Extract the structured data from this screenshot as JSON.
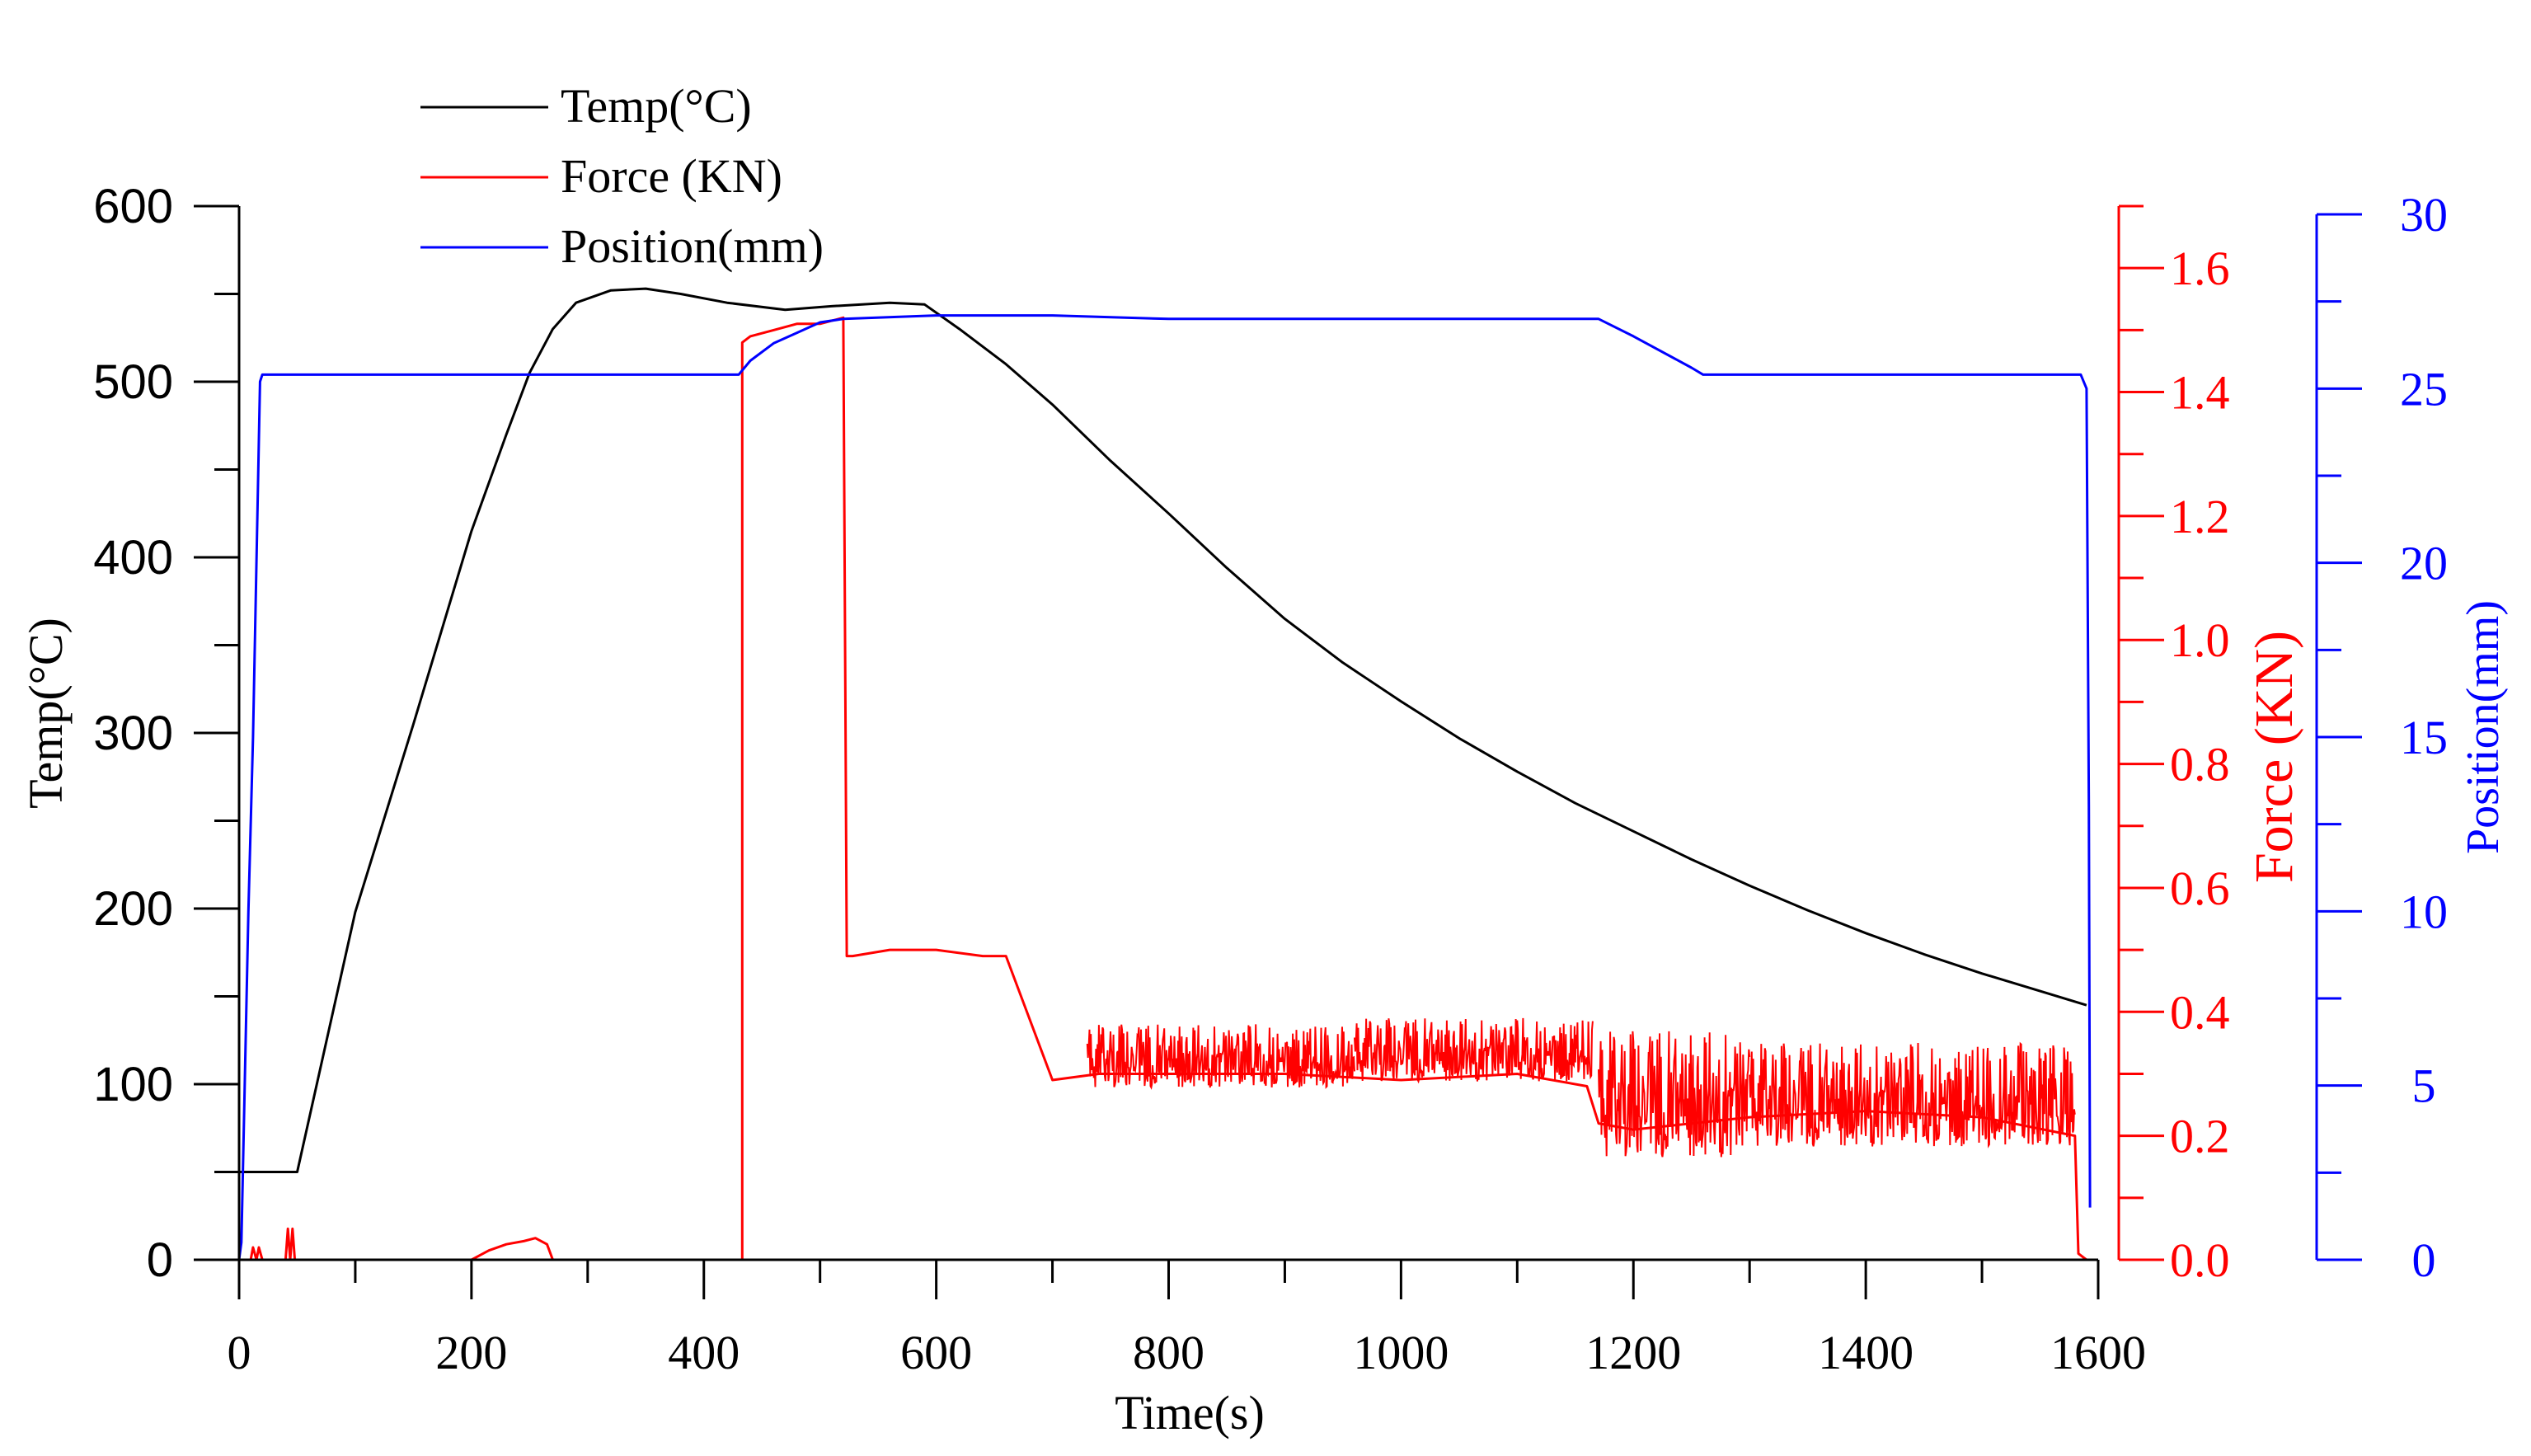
{
  "chart_data": {
    "type": "line",
    "title": "",
    "xlabel": "Time(s)",
    "x_ticks": [
      0,
      200,
      400,
      600,
      800,
      1000,
      1200,
      1400,
      1600
    ],
    "xlim": [
      0,
      1600
    ],
    "axes": {
      "temp": {
        "label": "Temp(°C)",
        "ylim": [
          0,
          600
        ],
        "ticks": [
          0,
          100,
          200,
          300,
          400,
          500,
          600
        ],
        "tick_labels": [
          "0",
          "100",
          "200",
          "300",
          "400",
          "500",
          "600"
        ],
        "color": "#000000",
        "side": "left"
      },
      "force": {
        "label": "Force (KN)",
        "ylim": [
          0,
          1.7
        ],
        "ticks": [
          0.0,
          0.2,
          0.4,
          0.6,
          0.8,
          1.0,
          1.2,
          1.4,
          1.6
        ],
        "tick_labels": [
          "0.0",
          "0.2",
          "0.4",
          "0.6",
          "0.8",
          "1.0",
          "1.2",
          "1.4",
          "1.6"
        ],
        "color": "#ff0000",
        "side": "right-inner"
      },
      "position": {
        "label": "Position(mm)",
        "ylim": [
          0,
          30
        ],
        "ticks": [
          0,
          5,
          10,
          15,
          20,
          25,
          30
        ],
        "tick_labels": [
          "0",
          "5",
          "10",
          "15",
          "20",
          "25",
          "30"
        ],
        "color": "#0000ff",
        "side": "right-outer"
      }
    },
    "legend": {
      "placement": "top-left",
      "entries": [
        {
          "name": "Temp(°C)",
          "color": "#000000"
        },
        {
          "name": "Force (KN)",
          "color": "#ff0000"
        },
        {
          "name": "Position(mm)",
          "color": "#0000ff"
        }
      ]
    },
    "series": [
      {
        "name": "Temp(°C)",
        "axis": "temp",
        "color": "#000000",
        "x": [
          0,
          50,
          100,
          150,
          200,
          230,
          250,
          270,
          290,
          320,
          350,
          380,
          420,
          470,
          510,
          560,
          590,
          620,
          660,
          700,
          750,
          800,
          850,
          900,
          950,
          1000,
          1050,
          1100,
          1150,
          1200,
          1250,
          1300,
          1350,
          1400,
          1450,
          1500,
          1550,
          1590
        ],
        "values": [
          50,
          50,
          198,
          305,
          415,
          470,
          505,
          530,
          545,
          552,
          553,
          550,
          545,
          541,
          543,
          545,
          544,
          530,
          510,
          487,
          455,
          425,
          394,
          365,
          340,
          318,
          297,
          278,
          260,
          244,
          228,
          213,
          199,
          186,
          174,
          163,
          153,
          145
        ]
      },
      {
        "name": "Force (KN)",
        "axis": "force",
        "color": "#ff0000",
        "segments": [
          {
            "x": [
              0,
              10,
              12,
              15,
              17,
              20,
              40,
              42,
              44,
              46,
              48,
              430
            ],
            "values": [
              0.0,
              0.0,
              0.02,
              0.0,
              0.02,
              0.0,
              0.0,
              0.05,
              0.0,
              0.05,
              0.0,
              0.0
            ]
          },
          {
            "x": [
              200,
              215,
              230,
              245,
              255,
              265,
              270
            ],
            "values": [
              0.0,
              0.015,
              0.025,
              0.03,
              0.035,
              0.025,
              0.0
            ]
          },
          {
            "x": [
              433,
              433,
              440,
              460,
              480,
              500,
              520,
              523,
              528,
              560,
              600,
              640,
              660,
              700,
              740,
              800,
              900,
              1000,
              1100,
              1160,
              1170,
              1200,
              1250,
              1300,
              1400,
              1500,
              1580,
              1583,
              1590
            ],
            "values": [
              0.0,
              1.48,
              1.49,
              1.5,
              1.51,
              1.51,
              1.52,
              0.49,
              0.49,
              0.5,
              0.5,
              0.49,
              0.49,
              0.29,
              0.3,
              0.3,
              0.3,
              0.29,
              0.3,
              0.28,
              0.22,
              0.21,
              0.22,
              0.23,
              0.24,
              0.23,
              0.2,
              0.01,
              0.0
            ]
          }
        ],
        "noise": [
          {
            "x_range": [
              730,
              960
            ],
            "range": [
              0.27,
              0.38
            ]
          },
          {
            "x_range": [
              960,
              1165
            ],
            "range": [
              0.28,
              0.39
            ]
          },
          {
            "x_range": [
              1170,
              1300
            ],
            "range": [
              0.15,
              0.37
            ]
          },
          {
            "x_range": [
              1300,
              1580
            ],
            "range": [
              0.17,
              0.35
            ]
          }
        ]
      },
      {
        "name": "Position(mm)",
        "axis": "position",
        "color": "#0000ff",
        "x": [
          0,
          2,
          8,
          12,
          18,
          20,
          430,
          440,
          460,
          480,
          500,
          520,
          600,
          700,
          800,
          900,
          1000,
          1100,
          1170,
          1200,
          1250,
          1260,
          1400,
          1500,
          1585,
          1590,
          1592,
          1593
        ],
        "values": [
          0,
          0.5,
          10,
          15,
          25.2,
          25.4,
          25.4,
          25.8,
          26.3,
          26.6,
          26.9,
          27.0,
          27.1,
          27.1,
          27.0,
          27.0,
          27.0,
          27.0,
          27.0,
          26.5,
          25.6,
          25.4,
          25.4,
          25.4,
          25.4,
          25.0,
          13,
          1.5
        ]
      }
    ]
  }
}
